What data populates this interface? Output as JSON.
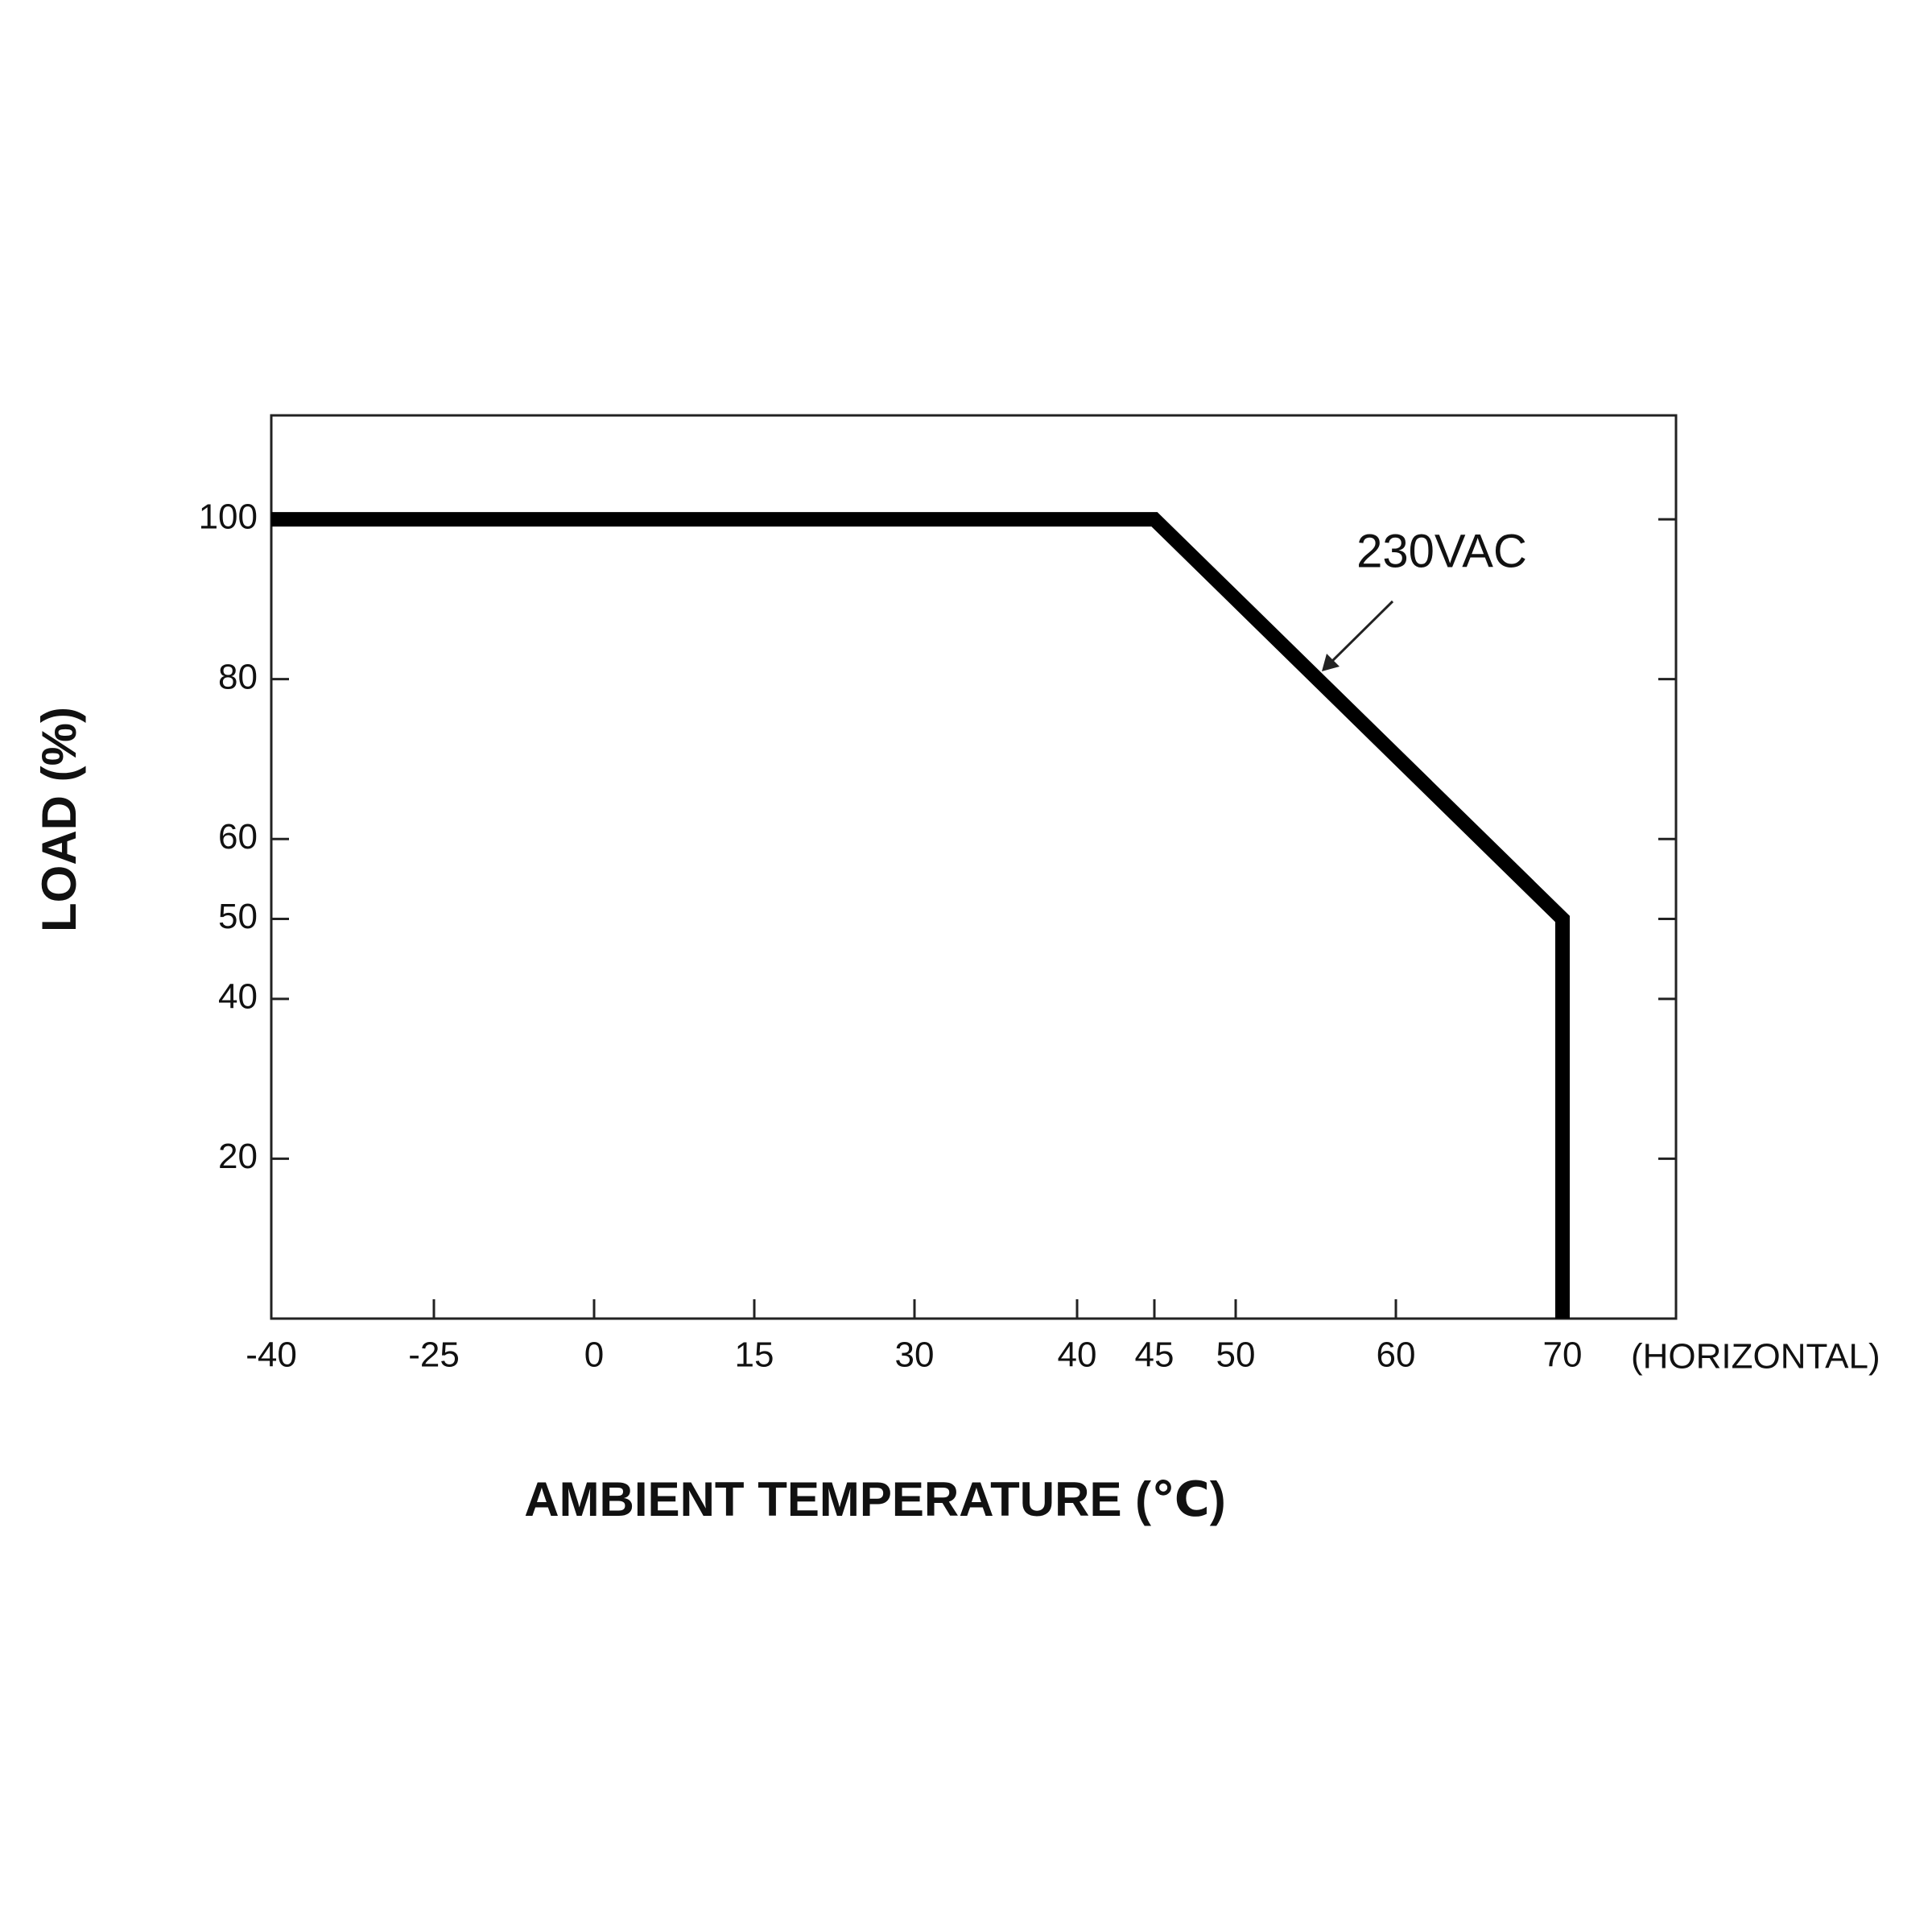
{
  "chart_data": {
    "type": "line",
    "x_label": "AMBIENT TEMPERATURE (℃)",
    "y_label": "LOAD (%)",
    "x_note": "(HORIZONTAL)",
    "xlim": [
      -40,
      77
    ],
    "xticks": [
      -40,
      -25,
      0,
      15,
      30,
      40,
      45,
      50,
      60,
      70
    ],
    "ylim": [
      0,
      113
    ],
    "yticks": [
      20,
      40,
      50,
      60,
      80,
      100
    ],
    "series": [
      {
        "name": "230VAC",
        "color": "#000000",
        "x": [
          -40,
          45,
          70,
          70
        ],
        "values": [
          100,
          100,
          50,
          0
        ]
      }
    ]
  }
}
